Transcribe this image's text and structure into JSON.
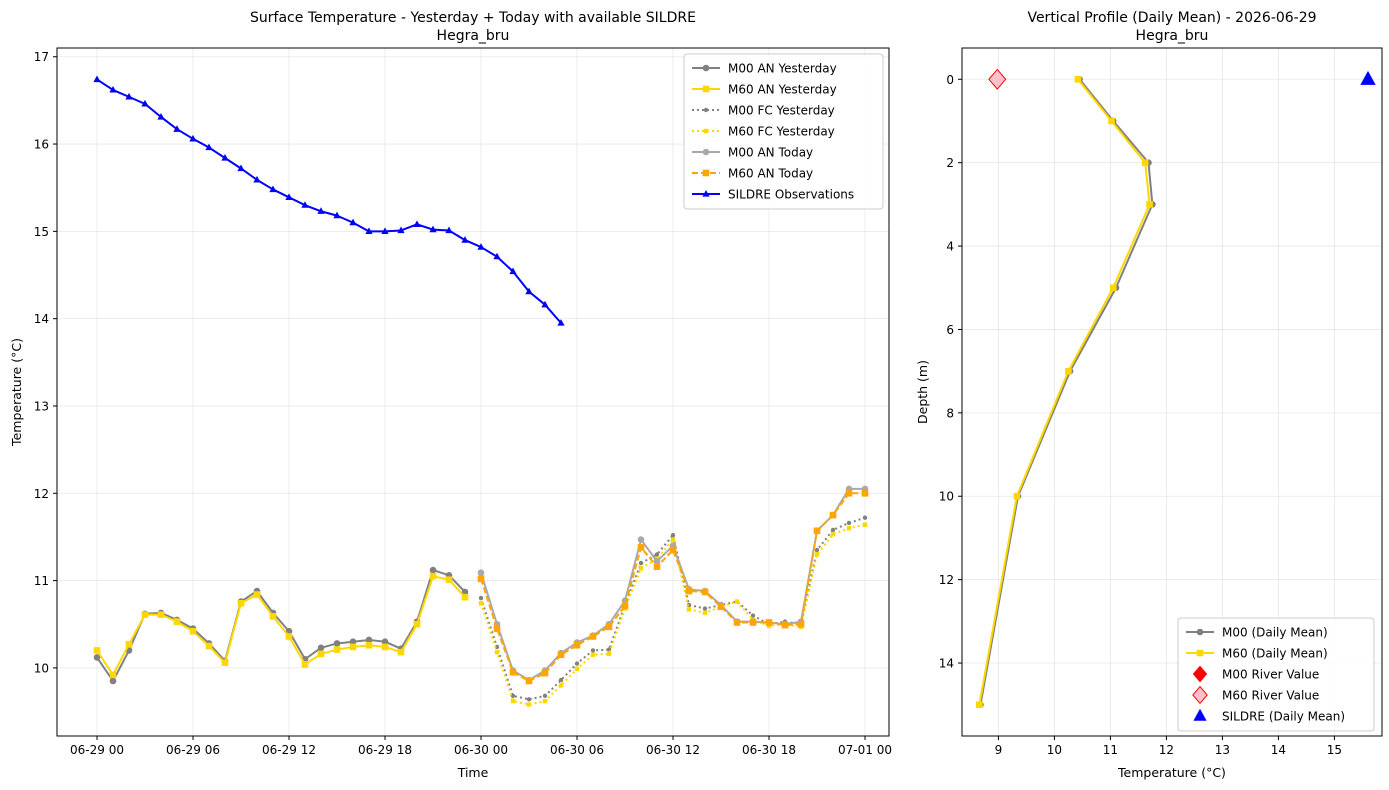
{
  "chart_data": [
    {
      "type": "line",
      "title": "Surface Temperature - Yesterday + Today with available SILDRE",
      "subtitle": "Hegra_bru",
      "xlabel": "Time",
      "ylabel": "Temperature (°C)",
      "x_unit": "hours since 06-29 00",
      "xlim": [
        -2.5,
        49.5
      ],
      "ylim": [
        9.22,
        17.1
      ],
      "xticks": [
        0,
        6,
        12,
        18,
        24,
        30,
        36,
        42,
        48
      ],
      "xtick_labels": [
        "06-29 00",
        "06-29 06",
        "06-29 12",
        "06-29 18",
        "06-30 00",
        "06-30 06",
        "06-30 12",
        "06-30 18",
        "07-01 00"
      ],
      "yticks": [
        10,
        11,
        12,
        13,
        14,
        15,
        16,
        17
      ],
      "ytick_labels": [
        "10",
        "11",
        "12",
        "13",
        "14",
        "15",
        "16",
        "17"
      ],
      "grid": true,
      "legend_position": "top-right",
      "series": [
        {
          "name": "M00 AN Yesterday",
          "color": "#808080",
          "style": "solid",
          "marker": "circle",
          "x": [
            0,
            1,
            2,
            3,
            4,
            5,
            6,
            7,
            8,
            9,
            10,
            11,
            12,
            13,
            14,
            15,
            16,
            17,
            18,
            19,
            20,
            21,
            22,
            23
          ],
          "y": [
            10.12,
            9.85,
            10.2,
            10.62,
            10.63,
            10.55,
            10.45,
            10.28,
            10.08,
            10.76,
            10.88,
            10.63,
            10.42,
            10.1,
            10.23,
            10.28,
            10.3,
            10.32,
            10.3,
            10.22,
            10.53,
            11.12,
            11.06,
            10.87
          ]
        },
        {
          "name": "M60 AN Yesterday",
          "color": "#ffd700",
          "style": "solid",
          "marker": "square",
          "x": [
            0,
            1,
            2,
            3,
            4,
            5,
            6,
            7,
            8,
            9,
            10,
            11,
            12,
            13,
            14,
            15,
            16,
            17,
            18,
            19,
            20,
            21,
            22,
            23
          ],
          "y": [
            10.2,
            9.92,
            10.27,
            10.61,
            10.61,
            10.53,
            10.42,
            10.25,
            10.06,
            10.74,
            10.84,
            10.59,
            10.36,
            10.04,
            10.16,
            10.21,
            10.24,
            10.26,
            10.24,
            10.18,
            10.5,
            11.05,
            11.01,
            10.81
          ]
        },
        {
          "name": "M00 FC Yesterday",
          "color": "#808080",
          "style": "dotted",
          "marker": "circle",
          "x": [
            24,
            25,
            26,
            27,
            28,
            29,
            30,
            31,
            32,
            33,
            34,
            35,
            36,
            37,
            38,
            39,
            40,
            41,
            42,
            43,
            44,
            45,
            46,
            47,
            48
          ],
          "y": [
            10.8,
            10.24,
            9.68,
            9.64,
            9.68,
            9.86,
            10.05,
            10.2,
            10.21,
            10.72,
            11.2,
            11.3,
            11.52,
            10.72,
            10.68,
            10.72,
            10.76,
            10.6,
            10.5,
            10.53,
            10.5,
            11.35,
            11.58,
            11.66,
            11.72
          ]
        },
        {
          "name": "M60 FC Yesterday",
          "color": "#ffd700",
          "style": "dotted",
          "marker": "square",
          "x": [
            24,
            25,
            26,
            27,
            28,
            29,
            30,
            31,
            32,
            33,
            34,
            35,
            36,
            37,
            38,
            39,
            40,
            41,
            42,
            43,
            44,
            45,
            46,
            47,
            48
          ],
          "y": [
            10.74,
            10.18,
            9.62,
            9.58,
            9.62,
            9.8,
            9.99,
            10.15,
            10.16,
            10.68,
            11.14,
            11.25,
            11.47,
            10.67,
            10.63,
            10.7,
            10.76,
            10.55,
            10.48,
            10.5,
            10.47,
            11.3,
            11.53,
            11.6,
            11.64
          ]
        },
        {
          "name": "M00 AN Today",
          "color": "#a9a9a9",
          "style": "solid",
          "marker": "circle",
          "x": [
            24,
            25,
            26,
            27,
            28,
            29,
            30,
            31,
            32,
            33,
            34,
            35,
            36,
            37,
            38,
            39,
            40,
            41,
            42,
            43,
            44,
            45,
            46,
            47,
            48
          ],
          "y": [
            11.09,
            10.5,
            9.97,
            9.86,
            9.97,
            10.17,
            10.29,
            10.37,
            10.5,
            10.77,
            11.47,
            11.22,
            11.4,
            10.9,
            10.88,
            10.72,
            10.53,
            10.53,
            10.52,
            10.5,
            10.53,
            11.57,
            11.75,
            12.05,
            12.05
          ]
        },
        {
          "name": "M60 AN Today",
          "color": "#ffa500",
          "style": "dashed",
          "marker": "square",
          "x": [
            24,
            25,
            26,
            27,
            28,
            29,
            30,
            31,
            32,
            33,
            34,
            35,
            36,
            37,
            38,
            39,
            40,
            41,
            42,
            43,
            44,
            45,
            46,
            47,
            48
          ],
          "y": [
            11.02,
            10.45,
            9.95,
            9.85,
            9.94,
            10.15,
            10.26,
            10.36,
            10.47,
            10.71,
            11.38,
            11.16,
            11.35,
            10.88,
            10.87,
            10.7,
            10.52,
            10.52,
            10.52,
            10.49,
            10.5,
            11.57,
            11.75,
            12.0,
            12.0
          ]
        },
        {
          "name": "SILDRE Observations",
          "color": "#0000ff",
          "style": "solid",
          "marker": "triangle",
          "x": [
            0,
            1,
            2,
            3,
            4,
            5,
            6,
            7,
            8,
            9,
            10,
            11,
            12,
            13,
            14,
            15,
            16,
            17,
            18,
            19,
            20,
            21,
            22,
            23,
            24,
            25,
            26,
            27,
            28,
            29
          ],
          "y": [
            16.74,
            16.62,
            16.54,
            16.46,
            16.31,
            16.17,
            16.06,
            15.96,
            15.84,
            15.72,
            15.59,
            15.48,
            15.39,
            15.3,
            15.23,
            15.18,
            15.1,
            15.0,
            15.0,
            15.01,
            15.08,
            15.02,
            15.01,
            14.9,
            14.82,
            14.71,
            14.54,
            14.31,
            14.16,
            13.95
          ]
        }
      ]
    },
    {
      "type": "line",
      "title": "Vertical Profile (Daily Mean) - 2026-06-29",
      "subtitle": "Hegra_bru",
      "xlabel": "Temperature (°C)",
      "ylabel": "Depth (m)",
      "xlim": [
        8.35,
        15.85
      ],
      "ylim": [
        15.75,
        -0.75
      ],
      "y_inverted": true,
      "xticks": [
        9,
        10,
        11,
        12,
        13,
        14,
        15
      ],
      "xtick_labels": [
        "9",
        "10",
        "11",
        "12",
        "13",
        "14",
        "15"
      ],
      "yticks": [
        0,
        2,
        4,
        6,
        8,
        10,
        12,
        14
      ],
      "ytick_labels": [
        "0",
        "2",
        "4",
        "6",
        "8",
        "10",
        "12",
        "14"
      ],
      "grid": true,
      "legend_position": "bottom-right",
      "series": [
        {
          "name": "M00 (Daily Mean)",
          "color": "#808080",
          "style": "solid",
          "marker": "circle",
          "x": [
            10.45,
            11.05,
            11.68,
            11.75,
            11.1,
            10.28,
            9.35,
            8.68
          ],
          "y": [
            0,
            1,
            2,
            3,
            5,
            7,
            10,
            15
          ]
        },
        {
          "name": "M60 (Daily Mean)",
          "color": "#ffd700",
          "style": "solid",
          "marker": "square",
          "x": [
            10.42,
            11.02,
            11.62,
            11.7,
            11.05,
            10.25,
            9.33,
            8.66
          ],
          "y": [
            0,
            1,
            2,
            3,
            5,
            7,
            10,
            15
          ]
        },
        {
          "name": "M00 River Value",
          "color": "#ff0000",
          "style": "none",
          "marker": "diamond",
          "x": [],
          "y": []
        },
        {
          "name": "M60 River Value",
          "color": "#ffc0cb",
          "edge_color": "#ff0000",
          "style": "none",
          "marker": "diamond",
          "x": [
            8.98
          ],
          "y": [
            0
          ]
        },
        {
          "name": "SILDRE (Daily Mean)",
          "color": "#0000ff",
          "style": "none",
          "marker": "triangle",
          "x": [
            15.6
          ],
          "y": [
            0
          ]
        }
      ]
    }
  ]
}
